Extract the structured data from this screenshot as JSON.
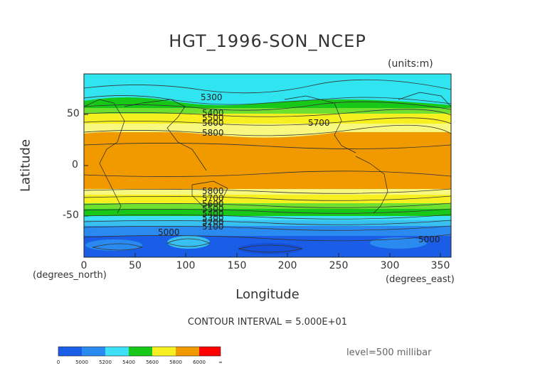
{
  "title": "HGT_1996-SON_NCEP",
  "units": "(units:m)",
  "y_axis": {
    "label": "Latitude",
    "ticks": [
      "50",
      "0",
      "-50"
    ],
    "units_label": "(degrees_north)"
  },
  "x_axis": {
    "label": "Longitude",
    "ticks": [
      "0",
      "50",
      "100",
      "150",
      "200",
      "250",
      "300",
      "350"
    ],
    "units_label": "(degrees_east)"
  },
  "contour_labels": [
    "5300",
    "5400",
    "5500",
    "5600",
    "5700",
    "5800",
    "5800",
    "5700",
    "5600",
    "5500",
    "5400",
    "5300",
    "5200",
    "5100",
    "5000",
    "5000"
  ],
  "contour_interval_text": "CONTOUR INTERVAL = 5.000E+01",
  "level_text": "level=500 millibar",
  "colorbar": {
    "tick_labels": [
      "0",
      "5000",
      "5200",
      "5400",
      "5600",
      "5800",
      "6000",
      "∞"
    ],
    "colors": [
      "#1a5ee8",
      "#2a8af0",
      "#38c0f0",
      "#3ee0f8",
      "#18c818",
      "#70e030",
      "#f6f020",
      "#f6f680",
      "#e8a000",
      "#f09a00",
      "#f04000",
      "#ff0000"
    ]
  },
  "field_colors": {
    "below_5000": "#1a5ee8",
    "5000_5100": "#2a8af0",
    "5100_5200": "#38c0f0",
    "5200_5300": "#3ee0f8",
    "5300_5400": "#30e0f0",
    "5400_5500": "#18c818",
    "5500_5600": "#70e030",
    "5600_5700": "#f6f020",
    "5700_5800": "#f8f880",
    "above_5800": "#f09a00"
  }
}
